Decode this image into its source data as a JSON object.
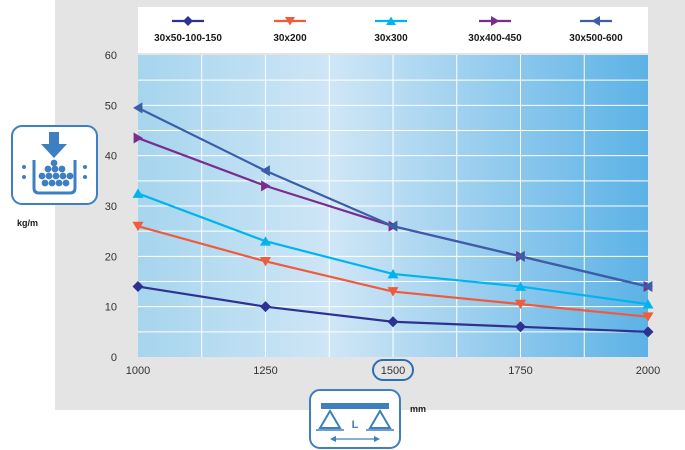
{
  "chart_data": {
    "type": "line",
    "title": "",
    "xlabel": "mm",
    "ylabel": "kg/m",
    "x": [
      1000,
      1250,
      1500,
      1750,
      2000
    ],
    "x_ticks": [
      "1000",
      "1250",
      "1500",
      "1750",
      "2000"
    ],
    "xlim": [
      1000,
      2000
    ],
    "y_ticks": [
      "0",
      "10",
      "20",
      "30",
      "40",
      "50",
      "60"
    ],
    "ylim": [
      0,
      60
    ],
    "grid": true,
    "legend_position": "top",
    "highlighted_x_tick": "1500",
    "series": [
      {
        "name": "30x50-100-150",
        "color": "#2e3192",
        "marker": "diamond",
        "values": [
          14,
          10,
          7,
          6,
          5
        ]
      },
      {
        "name": "30x200",
        "color": "#f15a3a",
        "marker": "triangle-down",
        "values": [
          26,
          19,
          13,
          10.5,
          8
        ]
      },
      {
        "name": "30x300",
        "color": "#00b5ef",
        "marker": "triangle-up",
        "values": [
          32.5,
          23,
          16.5,
          14,
          10.5
        ]
      },
      {
        "name": "30x400-450",
        "color": "#7b2d8e",
        "marker": "triangle-right",
        "values": [
          43.5,
          34,
          26,
          20,
          14
        ]
      },
      {
        "name": "30x500-600",
        "color": "#3a5fa8",
        "marker": "triangle-left",
        "values": [
          49.5,
          37,
          26,
          20,
          14
        ]
      }
    ]
  },
  "icons": {
    "load_icon": "distributed-load-icon",
    "span_icon": "span-length-icon",
    "span_letter": "L"
  },
  "colors": {
    "panel_bg": "#e4e4e5",
    "accent_blue": "#3d7fc1"
  }
}
